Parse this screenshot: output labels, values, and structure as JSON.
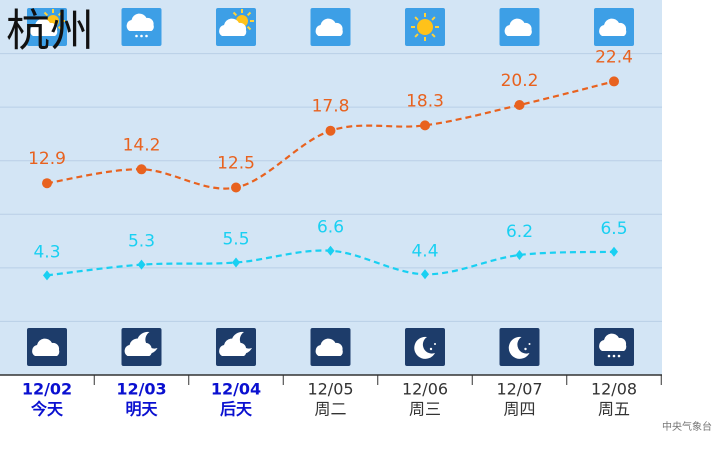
{
  "chart_data": {
    "type": "line",
    "title": "杭州",
    "categories": [
      "12/02",
      "12/03",
      "12/04",
      "12/05",
      "12/06",
      "12/07",
      "12/08"
    ],
    "day_labels": [
      "今天",
      "明天",
      "后天",
      "周二",
      "周三",
      "周四",
      "周五"
    ],
    "series": [
      {
        "name": "high",
        "color": "#e8621f",
        "values": [
          12.9,
          14.2,
          12.5,
          17.8,
          18.3,
          20.2,
          22.4
        ]
      },
      {
        "name": "low",
        "color": "#19d0f2",
        "values": [
          4.3,
          5.3,
          5.5,
          6.6,
          4.4,
          6.2,
          6.5
        ]
      }
    ],
    "ylim": [
      -5,
      30
    ],
    "yticks": [
      0,
      5,
      10,
      15,
      20,
      25
    ],
    "grid": true,
    "source": "中央气象台"
  }
}
